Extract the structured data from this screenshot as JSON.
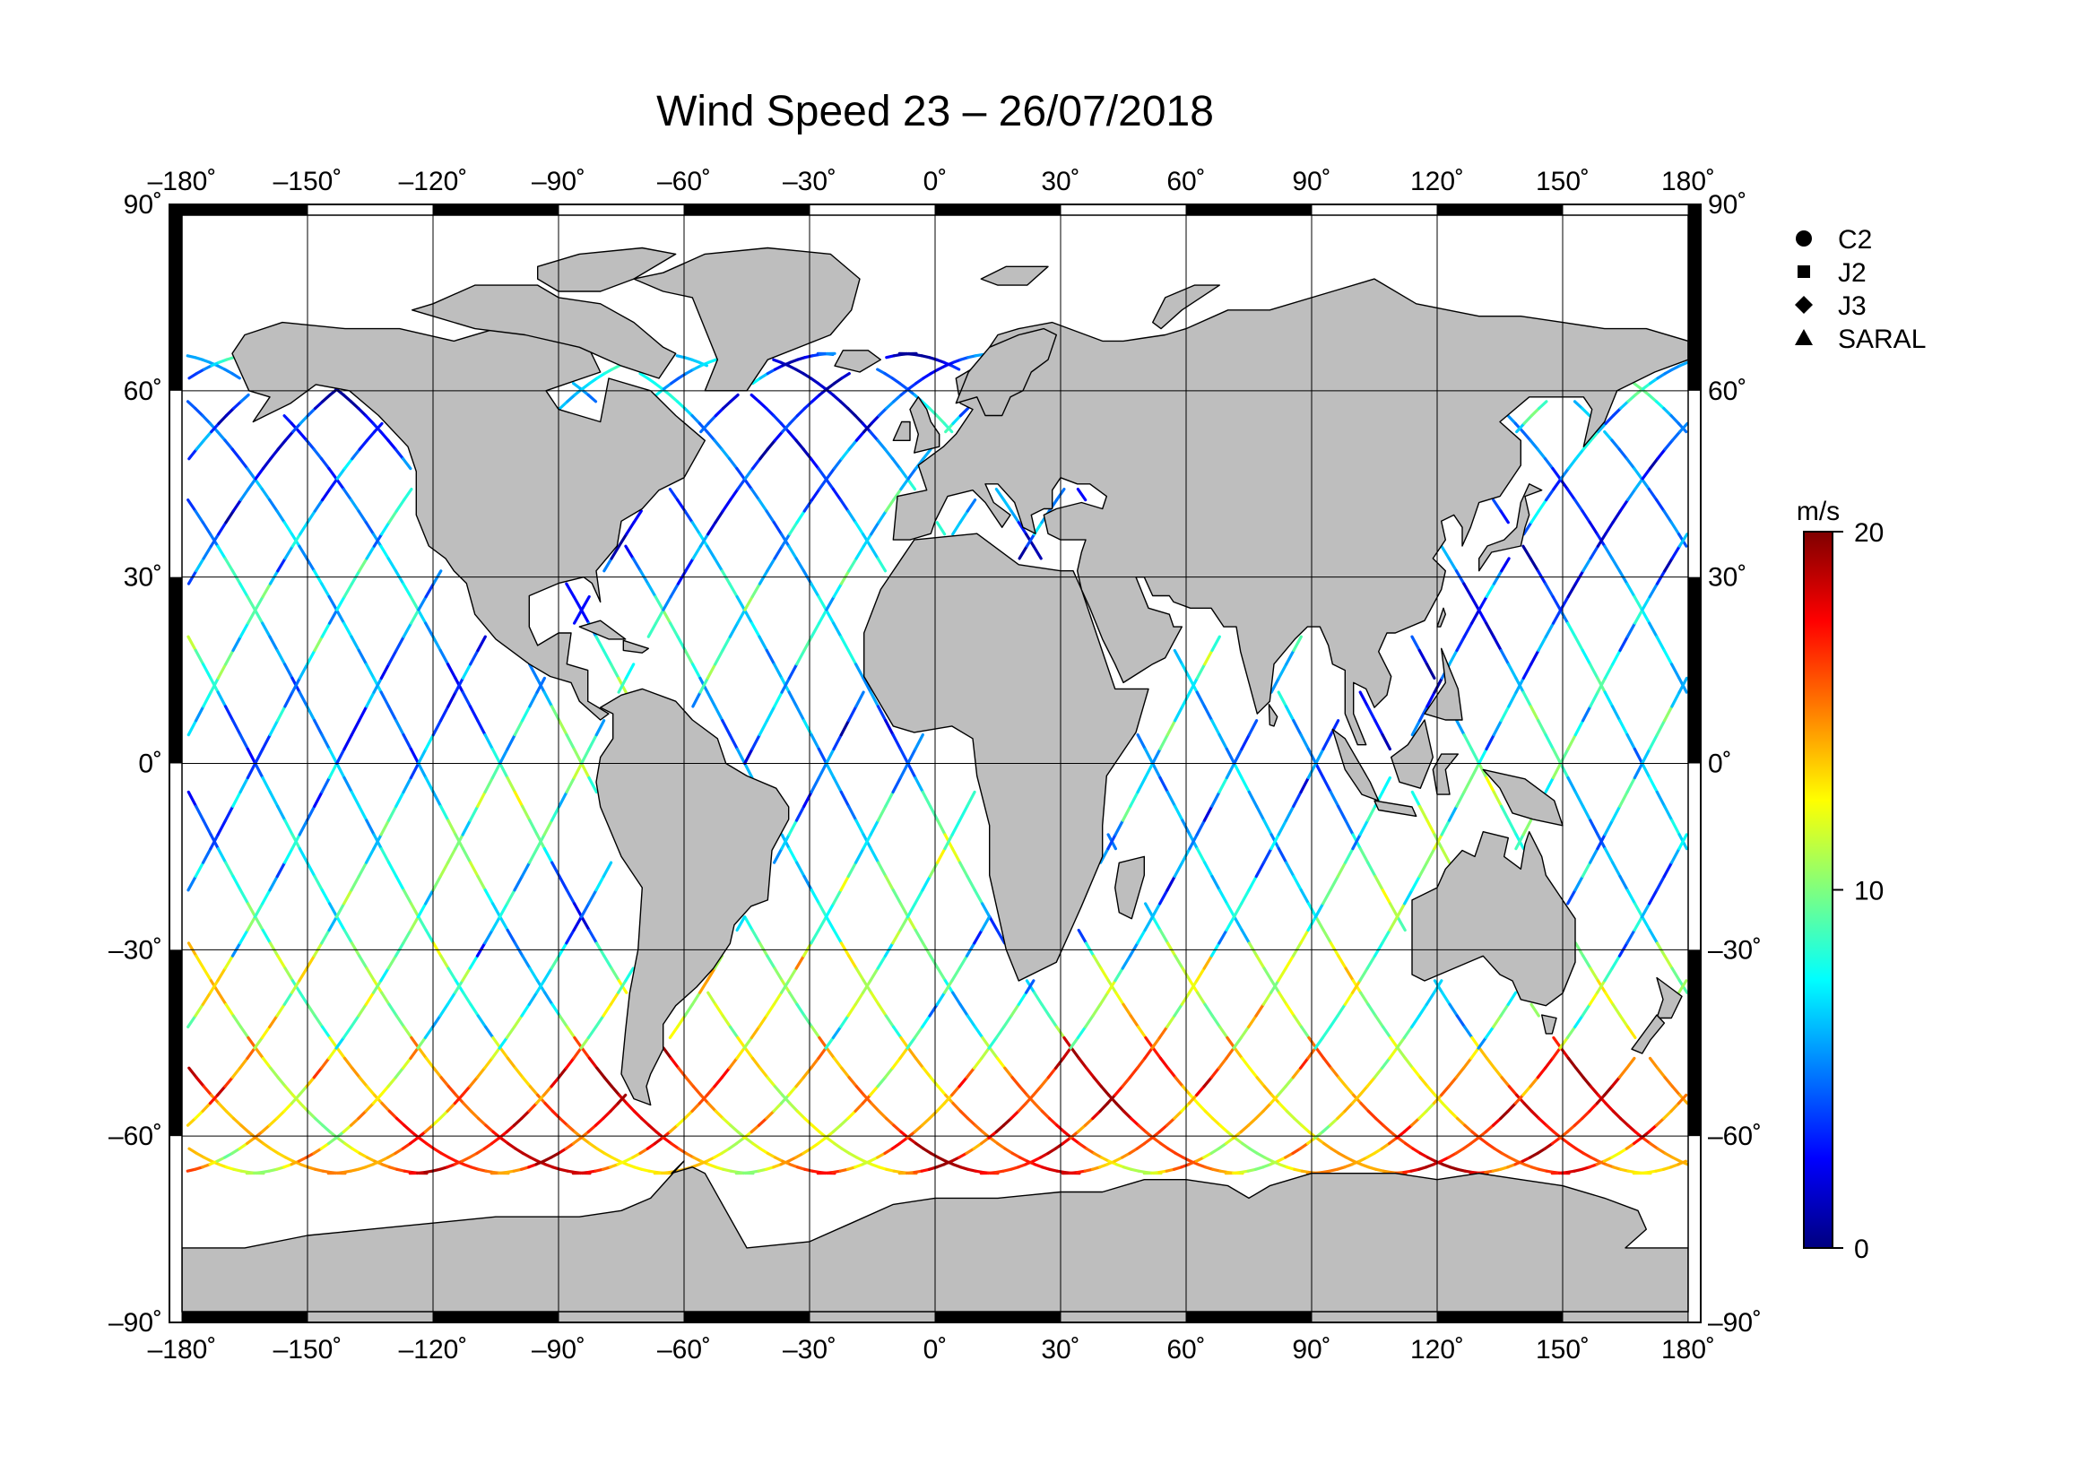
{
  "title": "Wind Speed 23 – 26/07/2018",
  "map": {
    "projection": "equirectangular",
    "lon_range": [
      -180,
      180
    ],
    "lat_range": [
      -90,
      90
    ],
    "lon_ticks": [
      -180,
      -150,
      -120,
      -90,
      -60,
      -30,
      0,
      30,
      60,
      90,
      120,
      150,
      180
    ],
    "lat_ticks": [
      90,
      60,
      30,
      0,
      -30,
      -60,
      -90
    ],
    "lon_tick_labels": [
      "–180˚",
      "–150˚",
      "–120˚",
      "–90˚",
      "–60˚",
      "–30˚",
      "0˚",
      "30˚",
      "60˚",
      "90˚",
      "120˚",
      "150˚",
      "180˚"
    ],
    "lat_tick_labels": [
      "90˚",
      "60˚",
      "30˚",
      "0˚",
      "–30˚",
      "–60˚",
      "–90˚"
    ],
    "grid": true,
    "land_color": "#bebebe",
    "ocean_color": "#ffffff"
  },
  "legend": {
    "placement": "right",
    "items": [
      {
        "label": "C2",
        "marker": "circle"
      },
      {
        "label": "J2",
        "marker": "square"
      },
      {
        "label": "J3",
        "marker": "diamond"
      },
      {
        "label": "SARAL",
        "marker": "triangle"
      }
    ]
  },
  "colorbar": {
    "unit": "m/s",
    "min": 0,
    "max": 20,
    "tick_values": [
      0,
      10,
      20
    ],
    "tick_labels": [
      "0",
      "10",
      "20"
    ],
    "colormap": [
      "#00007f",
      "#0000ff",
      "#007fff",
      "#00ffff",
      "#7fff7f",
      "#ffff00",
      "#ff7f00",
      "#ff0000",
      "#7f0000"
    ]
  },
  "chart_data": {
    "type": "scatter",
    "description_units": "lon (deg), lat (deg), wind speed (m/s)",
    "tracks_summary": "satellite altimeter ground tracks, ascending and descending, spanning -180 to 180 lon",
    "regional_wind_speed": [
      {
        "lat_band": [
          30,
          66
        ],
        "wind_speed": 5
      },
      {
        "lat_band": [
          0,
          30
        ],
        "wind_speed": 6
      },
      {
        "lat_band": [
          -30,
          0
        ],
        "wind_speed": 7
      },
      {
        "lat_band": [
          -45,
          -30
        ],
        "wind_speed": 10
      },
      {
        "lat_band": [
          -66,
          -45
        ],
        "wind_speed": 15
      }
    ]
  }
}
